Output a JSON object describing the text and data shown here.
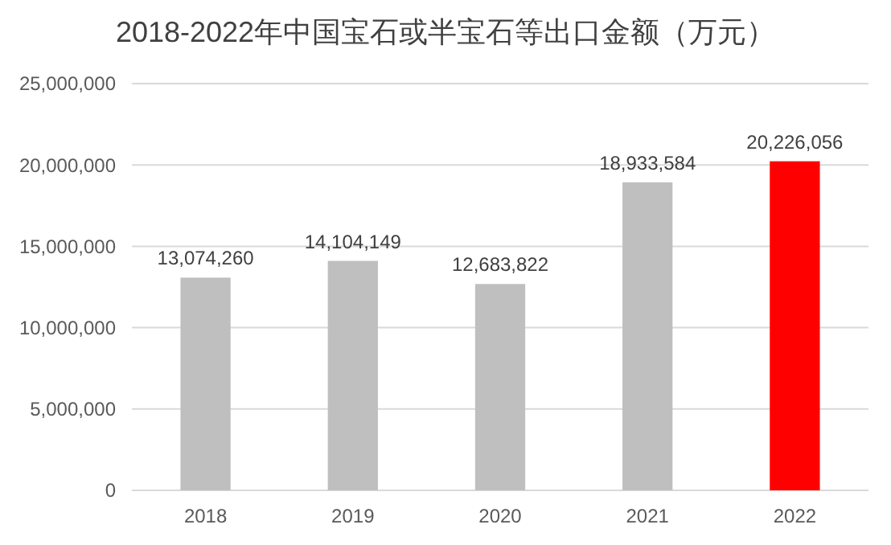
{
  "chart_data": {
    "type": "bar",
    "title": "2018-2022年中国宝石或半宝石等出口金额（万元）",
    "categories": [
      "2018",
      "2019",
      "2020",
      "2021",
      "2022"
    ],
    "values": [
      13074260,
      14104149,
      12683822,
      18933584,
      20226056
    ],
    "colors": [
      "#bfbfbf",
      "#bfbfbf",
      "#bfbfbf",
      "#bfbfbf",
      "#ff0000"
    ],
    "ylim": [
      0,
      25000000
    ],
    "yticks": [
      {
        "value": 0,
        "label": "0"
      },
      {
        "value": 5000000,
        "label": "5,000,000"
      },
      {
        "value": 10000000,
        "label": "10,000,000"
      },
      {
        "value": 15000000,
        "label": "15,000,000"
      },
      {
        "value": 20000000,
        "label": "20,000,000"
      },
      {
        "value": 25000000,
        "label": "25,000,000"
      }
    ],
    "value_labels": [
      "13,074,260",
      "14,104,149",
      "12,683,822",
      "18,933,584",
      "20,226,056"
    ],
    "grid": "y"
  }
}
